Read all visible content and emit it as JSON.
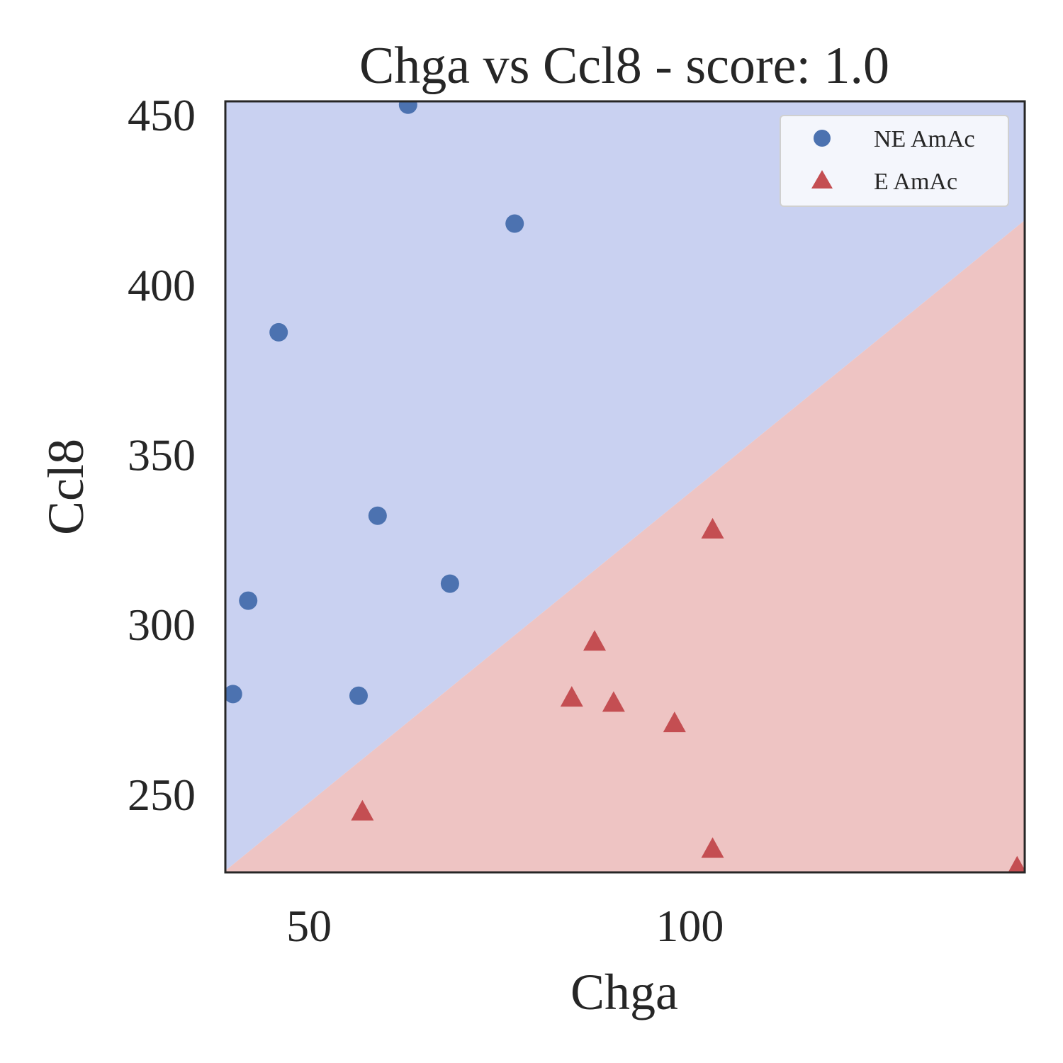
{
  "chart_data": {
    "type": "scatter",
    "title": "Chga vs Ccl8 - score: 1.0",
    "xlabel": "Chga",
    "ylabel": "Ccl8",
    "xlim": [
      39.0,
      144.0
    ],
    "ylim": [
      227.0,
      454.0
    ],
    "xticks": [
      50,
      100
    ],
    "yticks": [
      250,
      300,
      350,
      400,
      450
    ],
    "grid": false,
    "legend_position": "top-right",
    "decision_boundary": {
      "line": [
        [
          39.0,
          227.5
        ],
        [
          144.0,
          419.0
        ]
      ],
      "above_class": "NE AmAc",
      "below_class": "E AmAc",
      "above_color": "#c9d1f1",
      "below_color": "#eec4c3"
    },
    "series": [
      {
        "name": "NE AmAc",
        "marker": "circle",
        "color": "#4c72b0",
        "points": [
          [
            63.0,
            453.0
          ],
          [
            77.0,
            418.0
          ],
          [
            46.0,
            386.0
          ],
          [
            59.0,
            332.0
          ],
          [
            68.5,
            312.0
          ],
          [
            42.0,
            307.0
          ],
          [
            40.0,
            279.5
          ],
          [
            56.5,
            279.0
          ]
        ]
      },
      {
        "name": "E AmAc",
        "marker": "triangle",
        "color": "#c44e52",
        "points": [
          [
            103.0,
            328.0
          ],
          [
            87.5,
            295.0
          ],
          [
            84.5,
            278.5
          ],
          [
            90.0,
            277.0
          ],
          [
            98.0,
            271.0
          ],
          [
            57.0,
            245.0
          ],
          [
            103.0,
            234.0
          ],
          [
            143.0,
            228.5
          ]
        ]
      }
    ]
  }
}
